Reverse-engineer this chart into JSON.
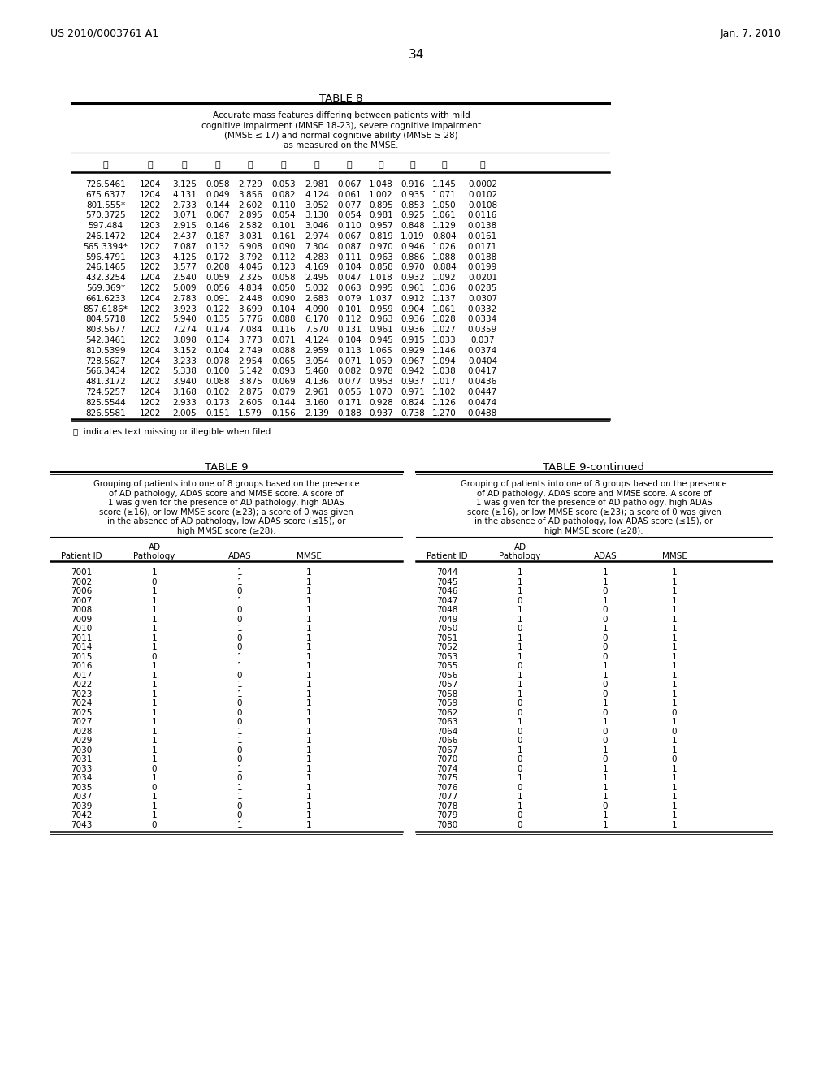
{
  "header_left": "US 2010/0003761 A1",
  "header_right": "Jan. 7, 2010",
  "page_number": "34",
  "table8_title": "TABLE 8",
  "table8_caption_lines": [
    "Accurate mass features differing between patients with mild",
    "cognitive impairment (MMSE 18-23), severe cognitive impairment",
    "(MMSE ≤ 17) and normal cognitive ability (MMSE ≥ 28)",
    "as measured on the MMSE."
  ],
  "table8_col_headers": [
    "ⓘ",
    "ⓘ",
    "ⓘ",
    "ⓘ",
    "ⓘ",
    "ⓘ",
    "ⓘ",
    "ⓘ",
    "ⓘ",
    "ⓘ",
    "ⓘ",
    "ⓘ"
  ],
  "table8_data": [
    [
      "726.5461",
      "1204",
      "3.125",
      "0.058",
      "2.729",
      "0.053",
      "2.981",
      "0.067",
      "1.048",
      "0.916",
      "1.145",
      "0.0002"
    ],
    [
      "675.6377",
      "1204",
      "4.131",
      "0.049",
      "3.856",
      "0.082",
      "4.124",
      "0.061",
      "1.002",
      "0.935",
      "1.071",
      "0.0102"
    ],
    [
      "801.555*",
      "1202",
      "2.733",
      "0.144",
      "2.602",
      "0.110",
      "3.052",
      "0.077",
      "0.895",
      "0.853",
      "1.050",
      "0.0108"
    ],
    [
      "570.3725",
      "1202",
      "3.071",
      "0.067",
      "2.895",
      "0.054",
      "3.130",
      "0.054",
      "0.981",
      "0.925",
      "1.061",
      "0.0116"
    ],
    [
      "597.484",
      "1203",
      "2.915",
      "0.146",
      "2.582",
      "0.101",
      "3.046",
      "0.110",
      "0.957",
      "0.848",
      "1.129",
      "0.0138"
    ],
    [
      "246.1472",
      "1204",
      "2.437",
      "0.187",
      "3.031",
      "0.161",
      "2.974",
      "0.067",
      "0.819",
      "1.019",
      "0.804",
      "0.0161"
    ],
    [
      "565.3394*",
      "1202",
      "7.087",
      "0.132",
      "6.908",
      "0.090",
      "7.304",
      "0.087",
      "0.970",
      "0.946",
      "1.026",
      "0.0171"
    ],
    [
      "596.4791",
      "1203",
      "4.125",
      "0.172",
      "3.792",
      "0.112",
      "4.283",
      "0.111",
      "0.963",
      "0.886",
      "1.088",
      "0.0188"
    ],
    [
      "246.1465",
      "1202",
      "3.577",
      "0.208",
      "4.046",
      "0.123",
      "4.169",
      "0.104",
      "0.858",
      "0.970",
      "0.884",
      "0.0199"
    ],
    [
      "432.3254",
      "1204",
      "2.540",
      "0.059",
      "2.325",
      "0.058",
      "2.495",
      "0.047",
      "1.018",
      "0.932",
      "1.092",
      "0.0201"
    ],
    [
      "569.369*",
      "1202",
      "5.009",
      "0.056",
      "4.834",
      "0.050",
      "5.032",
      "0.063",
      "0.995",
      "0.961",
      "1.036",
      "0.0285"
    ],
    [
      "661.6233",
      "1204",
      "2.783",
      "0.091",
      "2.448",
      "0.090",
      "2.683",
      "0.079",
      "1.037",
      "0.912",
      "1.137",
      "0.0307"
    ],
    [
      "857.6186*",
      "1202",
      "3.923",
      "0.122",
      "3.699",
      "0.104",
      "4.090",
      "0.101",
      "0.959",
      "0.904",
      "1.061",
      "0.0332"
    ],
    [
      "804.5718",
      "1202",
      "5.940",
      "0.135",
      "5.776",
      "0.088",
      "6.170",
      "0.112",
      "0.963",
      "0.936",
      "1.028",
      "0.0334"
    ],
    [
      "803.5677",
      "1202",
      "7.274",
      "0.174",
      "7.084",
      "0.116",
      "7.570",
      "0.131",
      "0.961",
      "0.936",
      "1.027",
      "0.0359"
    ],
    [
      "542.3461",
      "1202",
      "3.898",
      "0.134",
      "3.773",
      "0.071",
      "4.124",
      "0.104",
      "0.945",
      "0.915",
      "1.033",
      "0.037"
    ],
    [
      "810.5399",
      "1204",
      "3.152",
      "0.104",
      "2.749",
      "0.088",
      "2.959",
      "0.113",
      "1.065",
      "0.929",
      "1.146",
      "0.0374"
    ],
    [
      "728.5627",
      "1204",
      "3.233",
      "0.078",
      "2.954",
      "0.065",
      "3.054",
      "0.071",
      "1.059",
      "0.967",
      "1.094",
      "0.0404"
    ],
    [
      "566.3434",
      "1202",
      "5.338",
      "0.100",
      "5.142",
      "0.093",
      "5.460",
      "0.082",
      "0.978",
      "0.942",
      "1.038",
      "0.0417"
    ],
    [
      "481.3172",
      "1202",
      "3.940",
      "0.088",
      "3.875",
      "0.069",
      "4.136",
      "0.077",
      "0.953",
      "0.937",
      "1.017",
      "0.0436"
    ],
    [
      "724.5257",
      "1204",
      "3.168",
      "0.102",
      "2.875",
      "0.079",
      "2.961",
      "0.055",
      "1.070",
      "0.971",
      "1.102",
      "0.0447"
    ],
    [
      "825.5544",
      "1202",
      "2.933",
      "0.173",
      "2.605",
      "0.144",
      "3.160",
      "0.171",
      "0.928",
      "0.824",
      "1.126",
      "0.0474"
    ],
    [
      "826.5581",
      "1202",
      "2.005",
      "0.151",
      "1.579",
      "0.156",
      "2.139",
      "0.188",
      "0.937",
      "0.738",
      "1.270",
      "0.0488"
    ]
  ],
  "table8_footnote": "ⓘ  indicates text missing or illegible when filed",
  "table9_title": "TABLE 9",
  "table9cont_title": "TABLE 9-continued",
  "table9_caption_lines": [
    "Grouping of patients into one of 8 groups based on the presence",
    "of AD pathology, ADAS score and MMSE score. A score of",
    "1 was given for the presence of AD pathology, high ADAS",
    "score (≥16), or low MMSE score (≥23); a score of 0 was given",
    "in the absence of AD pathology, low ADAS score (≤15), or",
    "high MMSE score (≥28)."
  ],
  "table9_left_data": [
    [
      "7001",
      "1",
      "1",
      "1"
    ],
    [
      "7002",
      "0",
      "1",
      "1"
    ],
    [
      "7006",
      "1",
      "0",
      "1"
    ],
    [
      "7007",
      "1",
      "1",
      "1"
    ],
    [
      "7008",
      "1",
      "0",
      "1"
    ],
    [
      "7009",
      "1",
      "0",
      "1"
    ],
    [
      "7010",
      "1",
      "1",
      "1"
    ],
    [
      "7011",
      "1",
      "0",
      "1"
    ],
    [
      "7014",
      "1",
      "0",
      "1"
    ],
    [
      "7015",
      "0",
      "1",
      "1"
    ],
    [
      "7016",
      "1",
      "1",
      "1"
    ],
    [
      "7017",
      "1",
      "0",
      "1"
    ],
    [
      "7022",
      "1",
      "1",
      "1"
    ],
    [
      "7023",
      "1",
      "1",
      "1"
    ],
    [
      "7024",
      "1",
      "0",
      "1"
    ],
    [
      "7025",
      "1",
      "0",
      "1"
    ],
    [
      "7027",
      "1",
      "0",
      "1"
    ],
    [
      "7028",
      "1",
      "1",
      "1"
    ],
    [
      "7029",
      "1",
      "1",
      "1"
    ],
    [
      "7030",
      "1",
      "0",
      "1"
    ],
    [
      "7031",
      "1",
      "0",
      "1"
    ],
    [
      "7033",
      "0",
      "1",
      "1"
    ],
    [
      "7034",
      "1",
      "0",
      "1"
    ],
    [
      "7035",
      "0",
      "1",
      "1"
    ],
    [
      "7037",
      "1",
      "1",
      "1"
    ],
    [
      "7039",
      "1",
      "0",
      "1"
    ],
    [
      "7042",
      "1",
      "0",
      "1"
    ],
    [
      "7043",
      "0",
      "1",
      "1"
    ]
  ],
  "table9_right_data": [
    [
      "7044",
      "1",
      "1",
      "1"
    ],
    [
      "7045",
      "1",
      "1",
      "1"
    ],
    [
      "7046",
      "1",
      "0",
      "1"
    ],
    [
      "7047",
      "0",
      "1",
      "1"
    ],
    [
      "7048",
      "1",
      "0",
      "1"
    ],
    [
      "7049",
      "1",
      "0",
      "1"
    ],
    [
      "7050",
      "0",
      "1",
      "1"
    ],
    [
      "7051",
      "1",
      "0",
      "1"
    ],
    [
      "7052",
      "1",
      "0",
      "1"
    ],
    [
      "7053",
      "1",
      "0",
      "1"
    ],
    [
      "7055",
      "0",
      "1",
      "1"
    ],
    [
      "7056",
      "1",
      "1",
      "1"
    ],
    [
      "7057",
      "1",
      "0",
      "1"
    ],
    [
      "7058",
      "1",
      "0",
      "1"
    ],
    [
      "7059",
      "0",
      "1",
      "1"
    ],
    [
      "7062",
      "0",
      "0",
      "0"
    ],
    [
      "7063",
      "1",
      "1",
      "1"
    ],
    [
      "7064",
      "0",
      "0",
      "0"
    ],
    [
      "7066",
      "0",
      "0",
      "1"
    ],
    [
      "7067",
      "1",
      "1",
      "1"
    ],
    [
      "7070",
      "0",
      "0",
      "0"
    ],
    [
      "7074",
      "0",
      "1",
      "1"
    ],
    [
      "7075",
      "1",
      "1",
      "1"
    ],
    [
      "7076",
      "0",
      "1",
      "1"
    ],
    [
      "7077",
      "1",
      "1",
      "1"
    ],
    [
      "7078",
      "1",
      "0",
      "1"
    ],
    [
      "7079",
      "0",
      "1",
      "1"
    ],
    [
      "7080",
      "0",
      "1",
      "1"
    ]
  ],
  "bg_color": "#ffffff",
  "text_color": "#000000"
}
